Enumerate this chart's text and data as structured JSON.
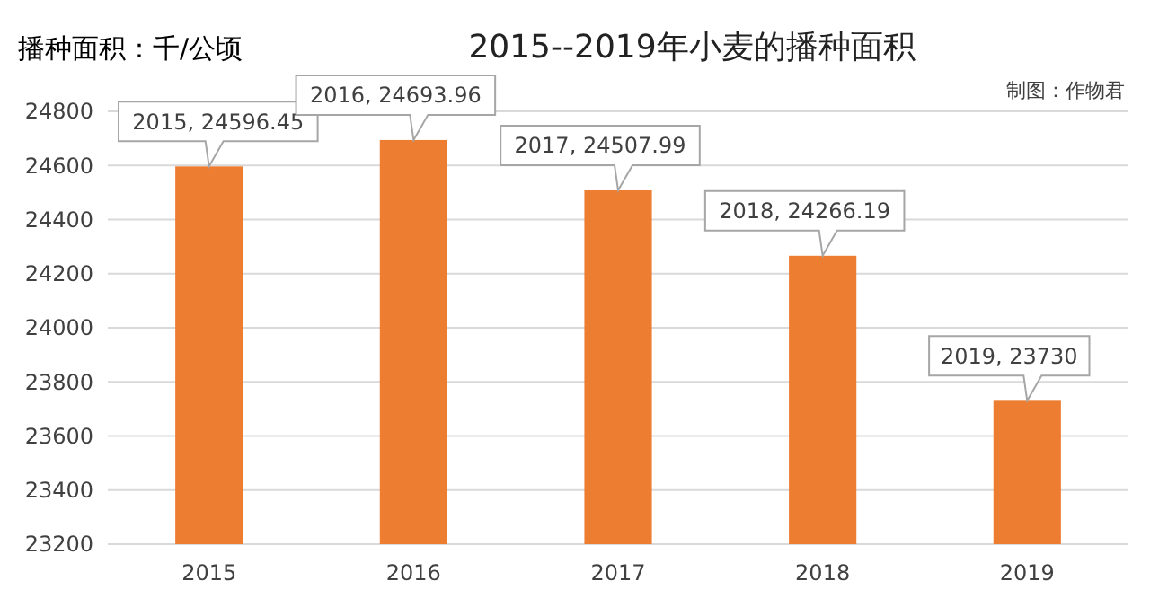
{
  "chart_data": {
    "type": "bar",
    "title": "2015--2019年小麦的播种面积",
    "ylabel": "播种面积：千/公顷",
    "annotations": [
      "制图：作物君"
    ],
    "categories": [
      "2015",
      "2016",
      "2017",
      "2018",
      "2019"
    ],
    "values": [
      24596.45,
      24693.96,
      24507.99,
      24266.19,
      23730
    ],
    "value_labels": [
      "2015, 24596.45",
      "2016, 24693.96",
      "2017, 24507.99",
      "2018, 24266.19",
      "2019, 23730"
    ],
    "color": "#ed7d31",
    "ylim": [
      23200,
      24800
    ],
    "yticks": [
      23200,
      23400,
      23600,
      23800,
      24000,
      24200,
      24400,
      24600,
      24800
    ],
    "grid": "y"
  }
}
